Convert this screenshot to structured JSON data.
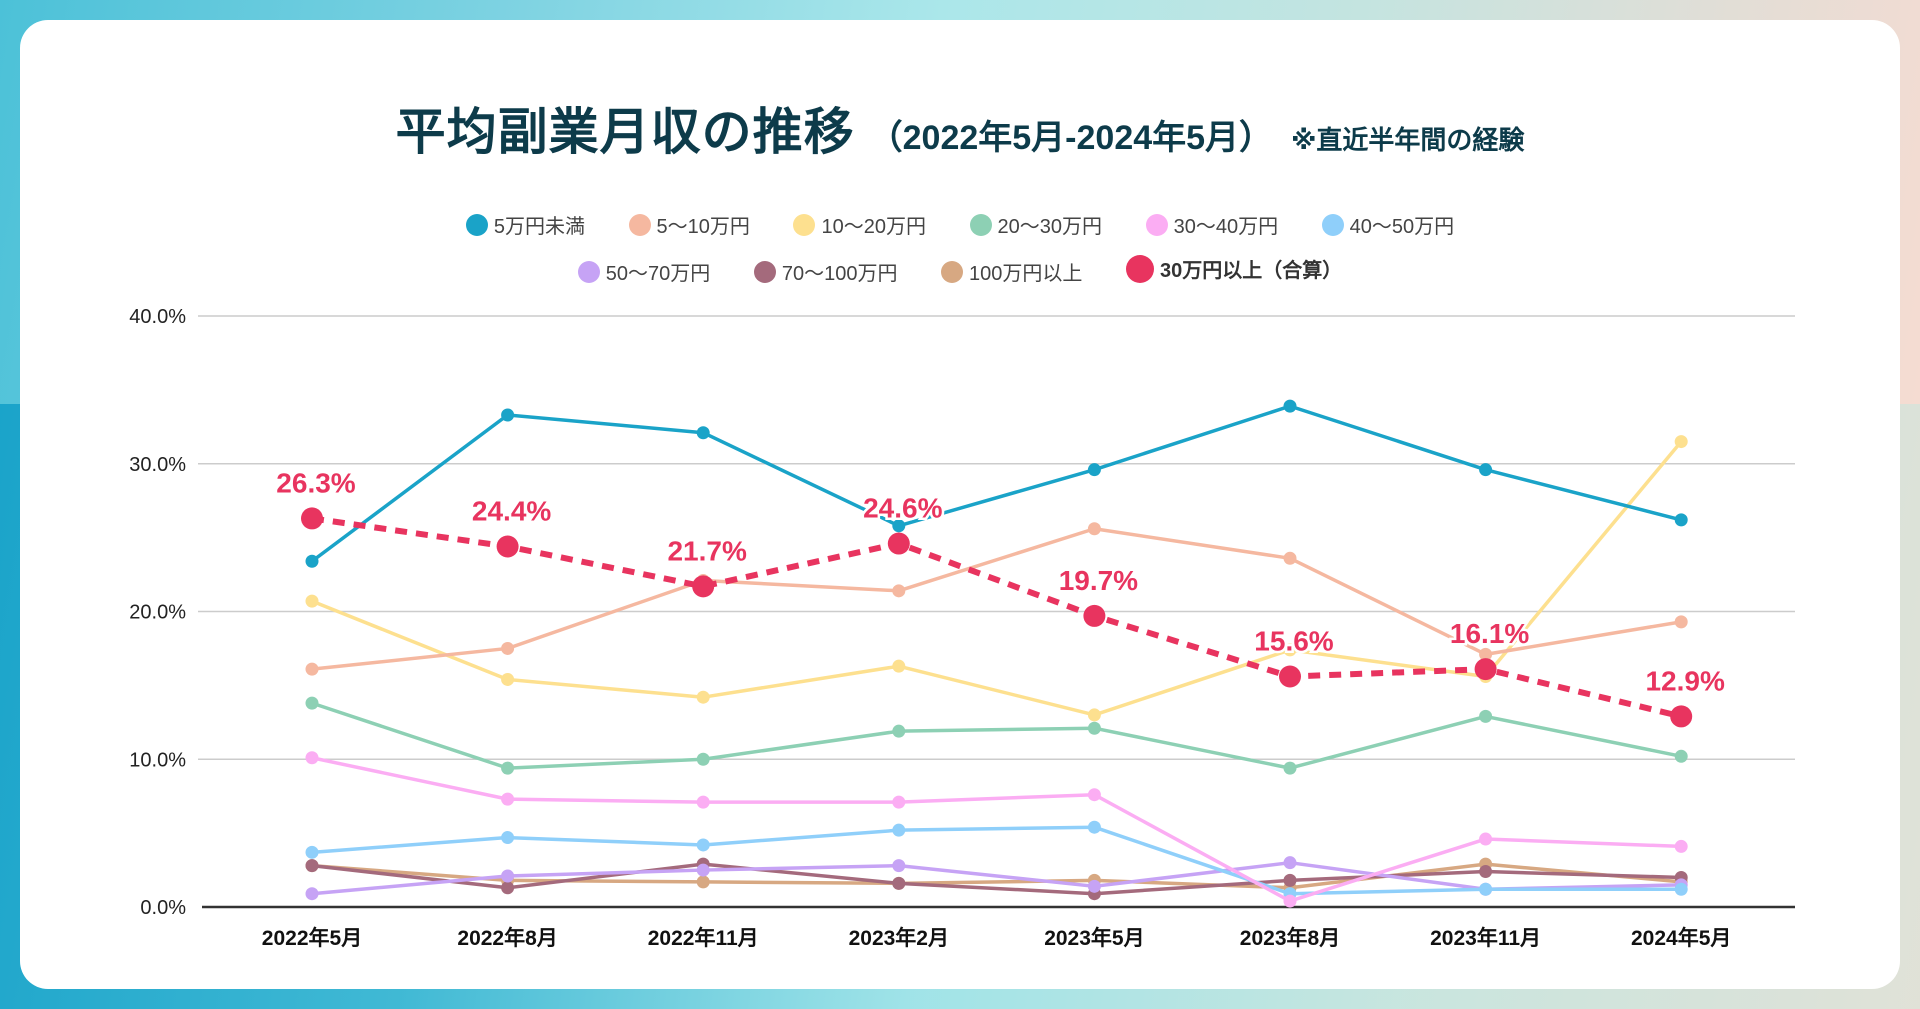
{
  "title": {
    "main": "平均副業月収の推移",
    "range": "（2022年5月-2024年5月）",
    "note": "※直近半年間の経験"
  },
  "legend": [
    {
      "label": "5万円未満",
      "color": "#1aa3c8"
    },
    {
      "label": "5〜10万円",
      "color": "#f5b8a0"
    },
    {
      "label": "10〜20万円",
      "color": "#fde08f"
    },
    {
      "label": "20〜30万円",
      "color": "#8dd0b4"
    },
    {
      "label": "30〜40万円",
      "color": "#fbadf3"
    },
    {
      "label": "40〜50万円",
      "color": "#8fcffa"
    },
    {
      "label": "50〜70万円",
      "color": "#c6a3f5"
    },
    {
      "label": "70〜100万円",
      "color": "#a46a7c"
    },
    {
      "label": "100万円以上",
      "color": "#d7a882"
    },
    {
      "label": "30万円以上（合算）",
      "color": "#e8345f"
    }
  ],
  "chart_data": {
    "type": "line",
    "title": "平均副業月収の推移（2022年5月-2024年5月）※直近半年間の経験",
    "xlabel": "",
    "ylabel": "",
    "ylim": [
      0,
      40
    ],
    "yticks": [
      "0.0%",
      "10.0%",
      "20.0%",
      "30.0%",
      "40.0%"
    ],
    "ytick_values": [
      0,
      10,
      20,
      30,
      40
    ],
    "grid": true,
    "legend_position": "top-center",
    "categories": [
      "2022年5月",
      "2022年8月",
      "2022年11月",
      "2023年2月",
      "2023年5月",
      "2023年8月",
      "2023年11月",
      "2024年5月"
    ],
    "series": [
      {
        "name": "5万円未満",
        "color": "#1aa3c8",
        "values": [
          23.4,
          33.3,
          32.1,
          25.8,
          29.6,
          33.9,
          29.6,
          26.2
        ]
      },
      {
        "name": "5〜10万円",
        "color": "#f5b8a0",
        "values": [
          16.1,
          17.5,
          22.1,
          21.4,
          25.6,
          23.6,
          17.1,
          19.3
        ]
      },
      {
        "name": "10〜20万円",
        "color": "#fde08f",
        "values": [
          20.7,
          15.4,
          14.2,
          16.3,
          13.0,
          17.4,
          15.6,
          31.5
        ]
      },
      {
        "name": "20〜30万円",
        "color": "#8dd0b4",
        "values": [
          13.8,
          9.4,
          10.0,
          11.9,
          12.1,
          9.4,
          12.9,
          10.2
        ]
      },
      {
        "name": "30〜40万円",
        "color": "#fbadf3",
        "values": [
          10.1,
          7.3,
          7.1,
          7.1,
          7.6,
          0.4,
          4.6,
          4.1
        ]
      },
      {
        "name": "40〜50万円",
        "color": "#8fcffa",
        "values": [
          3.7,
          4.7,
          4.2,
          5.2,
          5.4,
          0.9,
          1.2,
          1.2
        ]
      },
      {
        "name": "50〜70万円",
        "color": "#c6a3f5",
        "values": [
          0.9,
          2.1,
          2.5,
          2.8,
          1.4,
          3.0,
          1.2,
          1.5
        ]
      },
      {
        "name": "70〜100万円",
        "color": "#a46a7c",
        "values": [
          2.8,
          1.3,
          2.9,
          1.6,
          0.9,
          1.8,
          2.4,
          2.0
        ]
      },
      {
        "name": "100万円以上",
        "color": "#d7a882",
        "values": [
          2.8,
          1.8,
          1.7,
          1.6,
          1.8,
          1.3,
          2.9,
          1.7
        ]
      },
      {
        "name": "30万円以上（合算）",
        "color": "#e8345f",
        "dashed": true,
        "emphasis": true,
        "values": [
          26.3,
          24.4,
          21.7,
          24.6,
          19.7,
          15.6,
          16.1,
          12.9
        ],
        "data_labels": [
          "26.3%",
          "24.4%",
          "21.7%",
          "24.6%",
          "19.7%",
          "15.6%",
          "16.1%",
          "12.9%"
        ]
      }
    ]
  }
}
